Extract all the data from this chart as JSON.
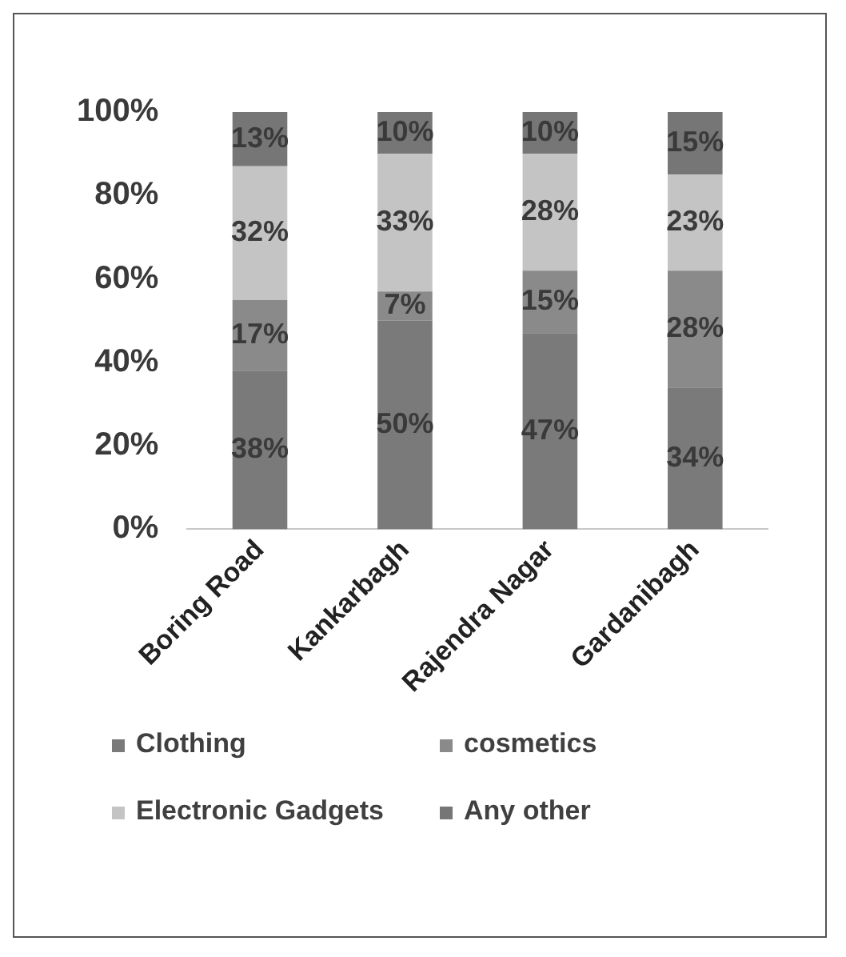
{
  "chart_data": {
    "type": "bar",
    "stacked": true,
    "categories": [
      "Boring Road",
      "Kankarbagh",
      "Rajendra Nagar",
      "Gardanibagh"
    ],
    "series": [
      {
        "name": "Clothing",
        "color": "#7a7a7a",
        "values": [
          38,
          50,
          47,
          34
        ],
        "value_labels": [
          "38%",
          "50%",
          "47%",
          "34%"
        ]
      },
      {
        "name": "cosmetics",
        "color": "#8a8a8a",
        "values": [
          17,
          7,
          15,
          28
        ],
        "value_labels": [
          "17%",
          "7%",
          "15%",
          "28%"
        ]
      },
      {
        "name": "Electronic Gadgets",
        "color": "#c4c4c4",
        "values": [
          32,
          33,
          28,
          23
        ],
        "value_labels": [
          "32%",
          "33%",
          "28%",
          "23%"
        ]
      },
      {
        "name": "Any other",
        "color": "#767676",
        "values": [
          13,
          10,
          10,
          15
        ],
        "value_labels": [
          "13%",
          "10%",
          "10%",
          "15%"
        ]
      }
    ],
    "ylim": [
      0,
      100
    ],
    "yticks": [
      {
        "value": 0,
        "label": "0%"
      },
      {
        "value": 20,
        "label": "20%"
      },
      {
        "value": 40,
        "label": "40%"
      },
      {
        "value": 60,
        "label": "60%"
      },
      {
        "value": 80,
        "label": "80%"
      },
      {
        "value": 100,
        "label": "100%"
      }
    ],
    "grid": false,
    "legend": "bottom"
  }
}
